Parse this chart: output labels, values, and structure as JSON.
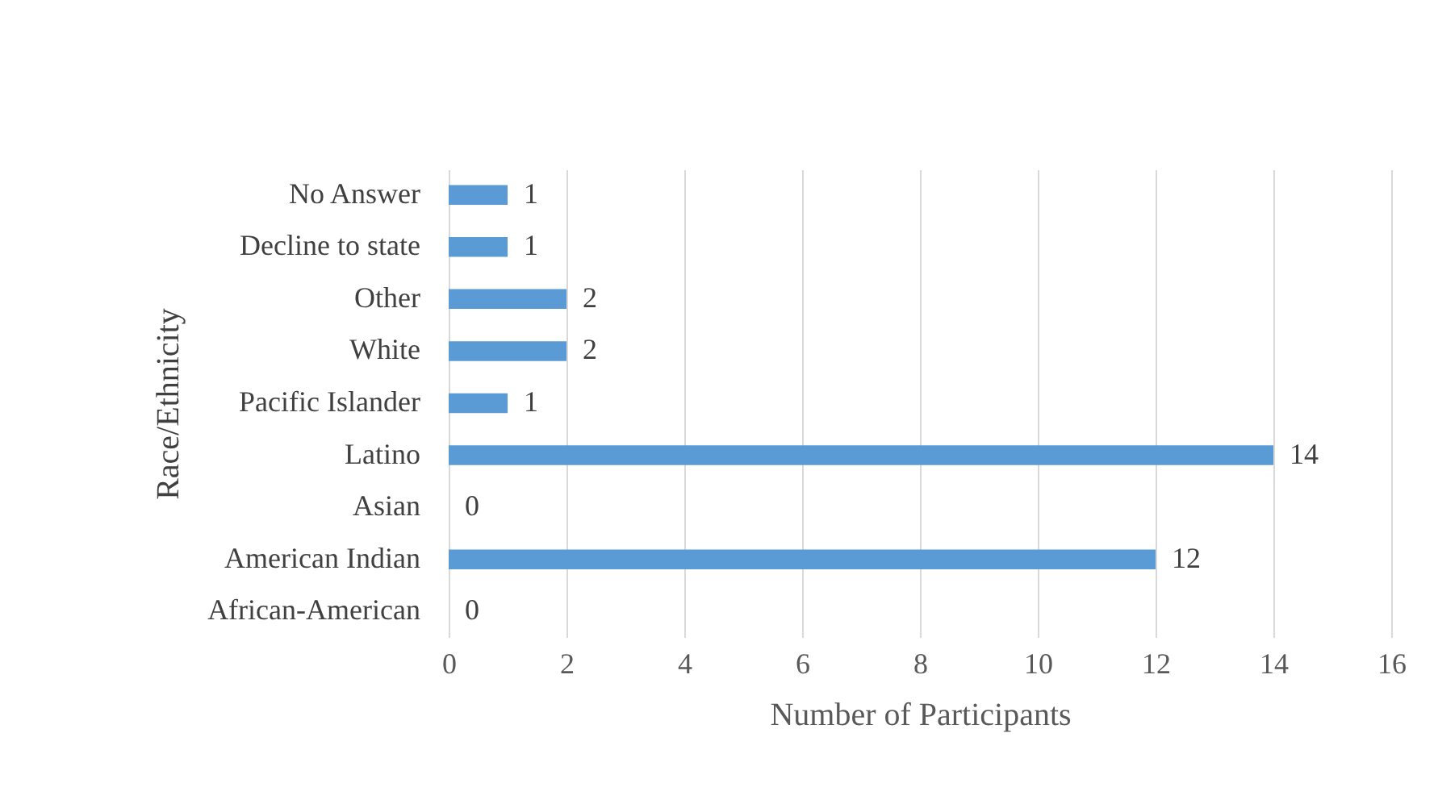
{
  "chart_data": {
    "type": "bar",
    "orientation": "horizontal",
    "categories": [
      "No Answer",
      "Decline to state",
      "Other",
      "White",
      "Pacific Islander",
      "Latino",
      "Asian",
      "American Indian",
      "African-American"
    ],
    "values": [
      1,
      1,
      2,
      2,
      1,
      14,
      0,
      12,
      0
    ],
    "color": "#5b9bd5",
    "xlabel": "Number of Participants",
    "ylabel": "Race/Ethnicity",
    "xlim": [
      0,
      16
    ],
    "xticks": [
      0,
      2,
      4,
      6,
      8,
      10,
      12,
      14,
      16
    ],
    "grid": "x",
    "data_labels": true
  }
}
